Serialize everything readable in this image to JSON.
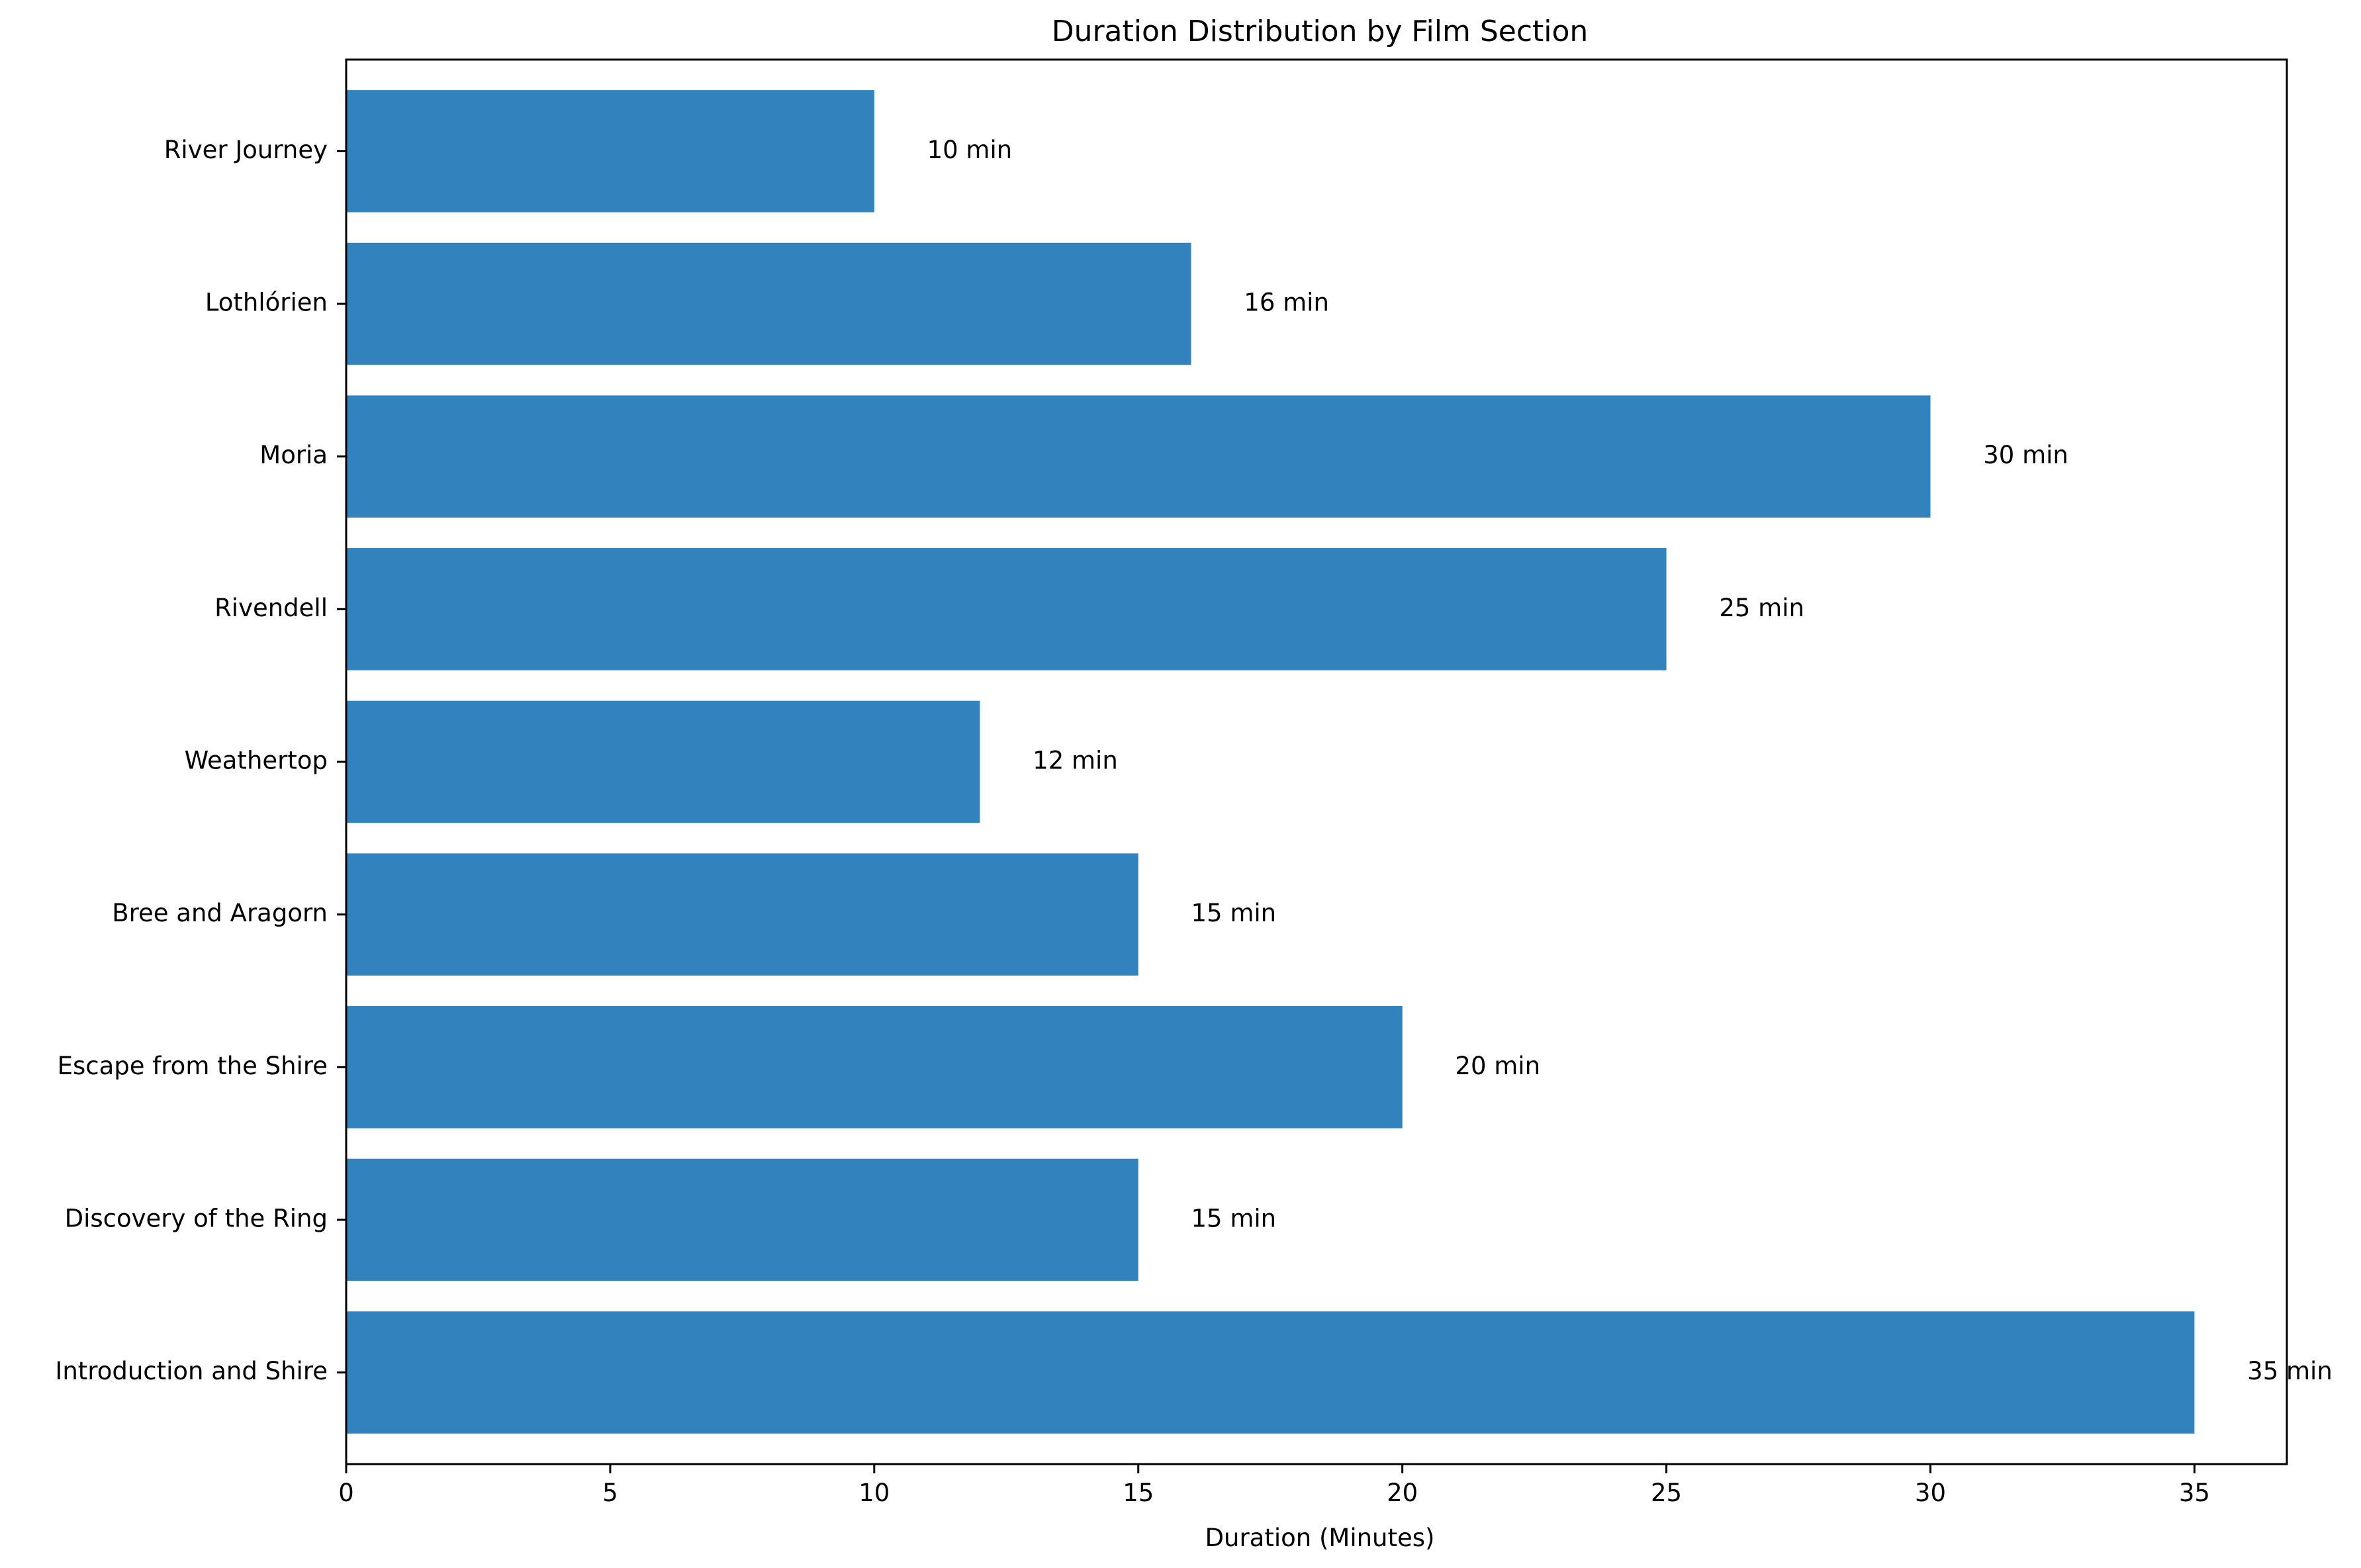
{
  "chart_data": {
    "type": "bar",
    "orientation": "horizontal",
    "title": "Duration Distribution by Film Section",
    "xlabel": "Duration (Minutes)",
    "ylabel": "",
    "categories": [
      "Introduction and Shire",
      "Discovery of the Ring",
      "Escape from the Shire",
      "Bree and Aragorn",
      "Weathertop",
      "Rivendell",
      "Moria",
      "Lothlórien",
      "River Journey"
    ],
    "values": [
      35,
      15,
      20,
      15,
      12,
      25,
      30,
      16,
      10
    ],
    "data_labels": [
      "35 min",
      "15 min",
      "20 min",
      "15 min",
      "12 min",
      "25 min",
      "30 min",
      "16 min",
      "10 min"
    ],
    "xlim": [
      0,
      36.75
    ],
    "xticks": [
      0,
      5,
      10,
      15,
      20,
      25,
      30,
      35
    ],
    "xtick_labels": [
      "0",
      "5",
      "10",
      "15",
      "20",
      "25",
      "30",
      "35"
    ],
    "grid": false,
    "legend": "none",
    "bar_color": "#3182bd"
  }
}
